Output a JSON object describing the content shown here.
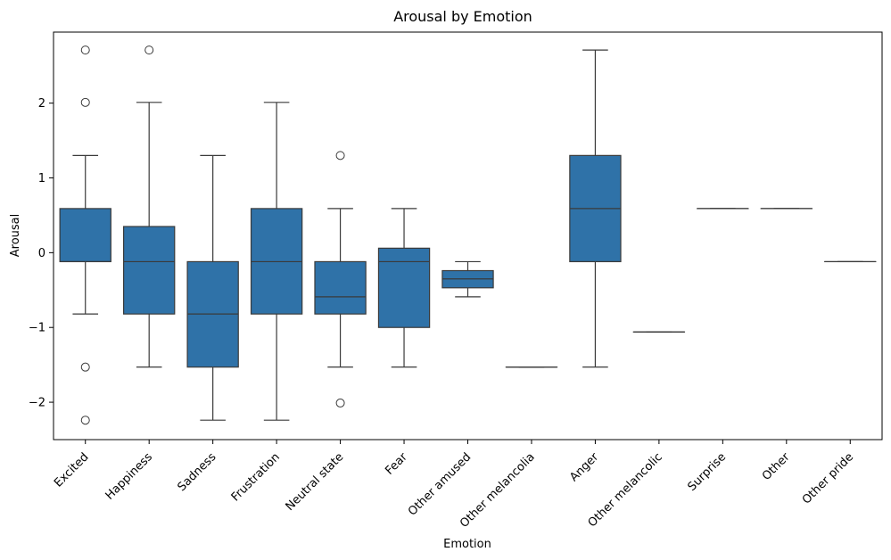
{
  "chart_data": {
    "type": "box",
    "title": "Arousal by Emotion",
    "xlabel": "Emotion",
    "ylabel": "Arousal",
    "ylim": [
      -2.5,
      2.95
    ],
    "yticks": [
      -2,
      -1,
      0,
      1,
      2
    ],
    "grid": false,
    "legend": "none",
    "box_color": "#2f72a8",
    "line_color": "#3a3a3a",
    "boxes": [
      {
        "category": "Excited",
        "whisker_low": -0.82,
        "q1": -0.12,
        "median": -0.12,
        "q3": 0.59,
        "whisker_high": 1.3,
        "outliers": [
          2.71,
          2.01,
          -1.53,
          -2.24
        ]
      },
      {
        "category": "Happiness",
        "whisker_low": -1.53,
        "q1": -0.82,
        "median": -0.12,
        "q3": 0.35,
        "whisker_high": 2.01,
        "outliers": [
          2.71
        ]
      },
      {
        "category": "Sadness",
        "whisker_low": -2.24,
        "q1": -1.53,
        "median": -0.82,
        "q3": -0.12,
        "whisker_high": 1.3,
        "outliers": []
      },
      {
        "category": "Frustration",
        "whisker_low": -2.24,
        "q1": -0.82,
        "median": -0.12,
        "q3": 0.59,
        "whisker_high": 2.01,
        "outliers": []
      },
      {
        "category": "Neutral state",
        "whisker_low": -1.53,
        "q1": -0.82,
        "median": -0.59,
        "q3": -0.12,
        "whisker_high": 0.59,
        "outliers": [
          1.3,
          -2.01
        ]
      },
      {
        "category": "Fear",
        "whisker_low": -1.53,
        "q1": -1.0,
        "median": -0.12,
        "q3": 0.06,
        "whisker_high": 0.59,
        "outliers": []
      },
      {
        "category": "Other amused",
        "whisker_low": -0.59,
        "q1": -0.47,
        "median": -0.35,
        "q3": -0.24,
        "whisker_high": -0.12,
        "outliers": []
      },
      {
        "category": "Other melancolia",
        "whisker_low": -1.53,
        "q1": -1.53,
        "median": -1.53,
        "q3": -1.53,
        "whisker_high": -1.53,
        "outliers": []
      },
      {
        "category": "Anger",
        "whisker_low": -1.53,
        "q1": -0.12,
        "median": 0.59,
        "q3": 1.3,
        "whisker_high": 2.71,
        "outliers": []
      },
      {
        "category": "Other melancolic",
        "whisker_low": -1.06,
        "q1": -1.06,
        "median": -1.06,
        "q3": -1.06,
        "whisker_high": -1.06,
        "outliers": []
      },
      {
        "category": "Surprise",
        "whisker_low": 0.59,
        "q1": 0.59,
        "median": 0.59,
        "q3": 0.59,
        "whisker_high": 0.59,
        "outliers": []
      },
      {
        "category": "Other",
        "whisker_low": 0.59,
        "q1": 0.59,
        "median": 0.59,
        "q3": 0.59,
        "whisker_high": 0.59,
        "outliers": []
      },
      {
        "category": "Other pride",
        "whisker_low": -0.12,
        "q1": -0.12,
        "median": -0.12,
        "q3": -0.12,
        "whisker_high": -0.12,
        "outliers": []
      }
    ]
  }
}
